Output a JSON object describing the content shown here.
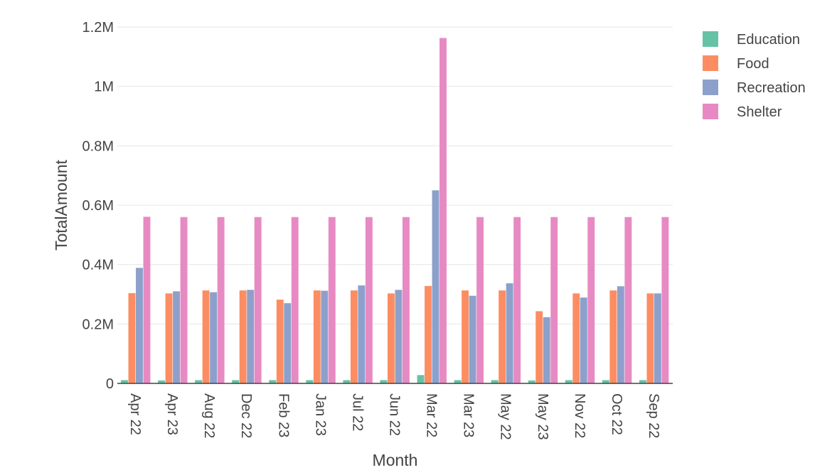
{
  "chart_data": {
    "type": "bar",
    "xlabel": "Month",
    "ylabel": "TotalAmount",
    "ylim": [
      0,
      1200000
    ],
    "yticks": [
      {
        "value": 0,
        "label": "0"
      },
      {
        "value": 200000,
        "label": "0.2M"
      },
      {
        "value": 400000,
        "label": "0.4M"
      },
      {
        "value": 600000,
        "label": "0.6M"
      },
      {
        "value": 800000,
        "label": "0.8M"
      },
      {
        "value": 1000000,
        "label": "1M"
      },
      {
        "value": 1200000,
        "label": "1.2M"
      }
    ],
    "grid": true,
    "legend_position": "top-right",
    "categories": [
      "Apr 22",
      "Apr 23",
      "Aug 22",
      "Dec 22",
      "Feb 23",
      "Jan 23",
      "Jul 22",
      "Jun 22",
      "Mar 22",
      "Mar 23",
      "May 22",
      "May 23",
      "Nov 22",
      "Oct 22",
      "Sep 22"
    ],
    "series": [
      {
        "name": "Education",
        "color": "#66c2a5",
        "values": [
          11000,
          10000,
          11000,
          11000,
          11000,
          11000,
          11000,
          11000,
          28000,
          11000,
          11000,
          10000,
          11000,
          11000,
          11000
        ]
      },
      {
        "name": "Food",
        "color": "#fc8d62",
        "values": [
          304000,
          303000,
          313000,
          313000,
          282000,
          313000,
          313000,
          303000,
          328000,
          313000,
          313000,
          243000,
          303000,
          313000,
          303000
        ]
      },
      {
        "name": "Recreation",
        "color": "#8da0cb",
        "values": [
          389000,
          310000,
          307000,
          315000,
          270000,
          312000,
          330000,
          315000,
          650000,
          295000,
          337000,
          223000,
          289000,
          327000,
          303000
        ]
      },
      {
        "name": "Shelter",
        "color": "#e78ac3",
        "values": [
          561000,
          560000,
          560000,
          560000,
          560000,
          560000,
          560000,
          560000,
          1163000,
          560000,
          560000,
          560000,
          560000,
          560000,
          560000
        ]
      }
    ]
  }
}
